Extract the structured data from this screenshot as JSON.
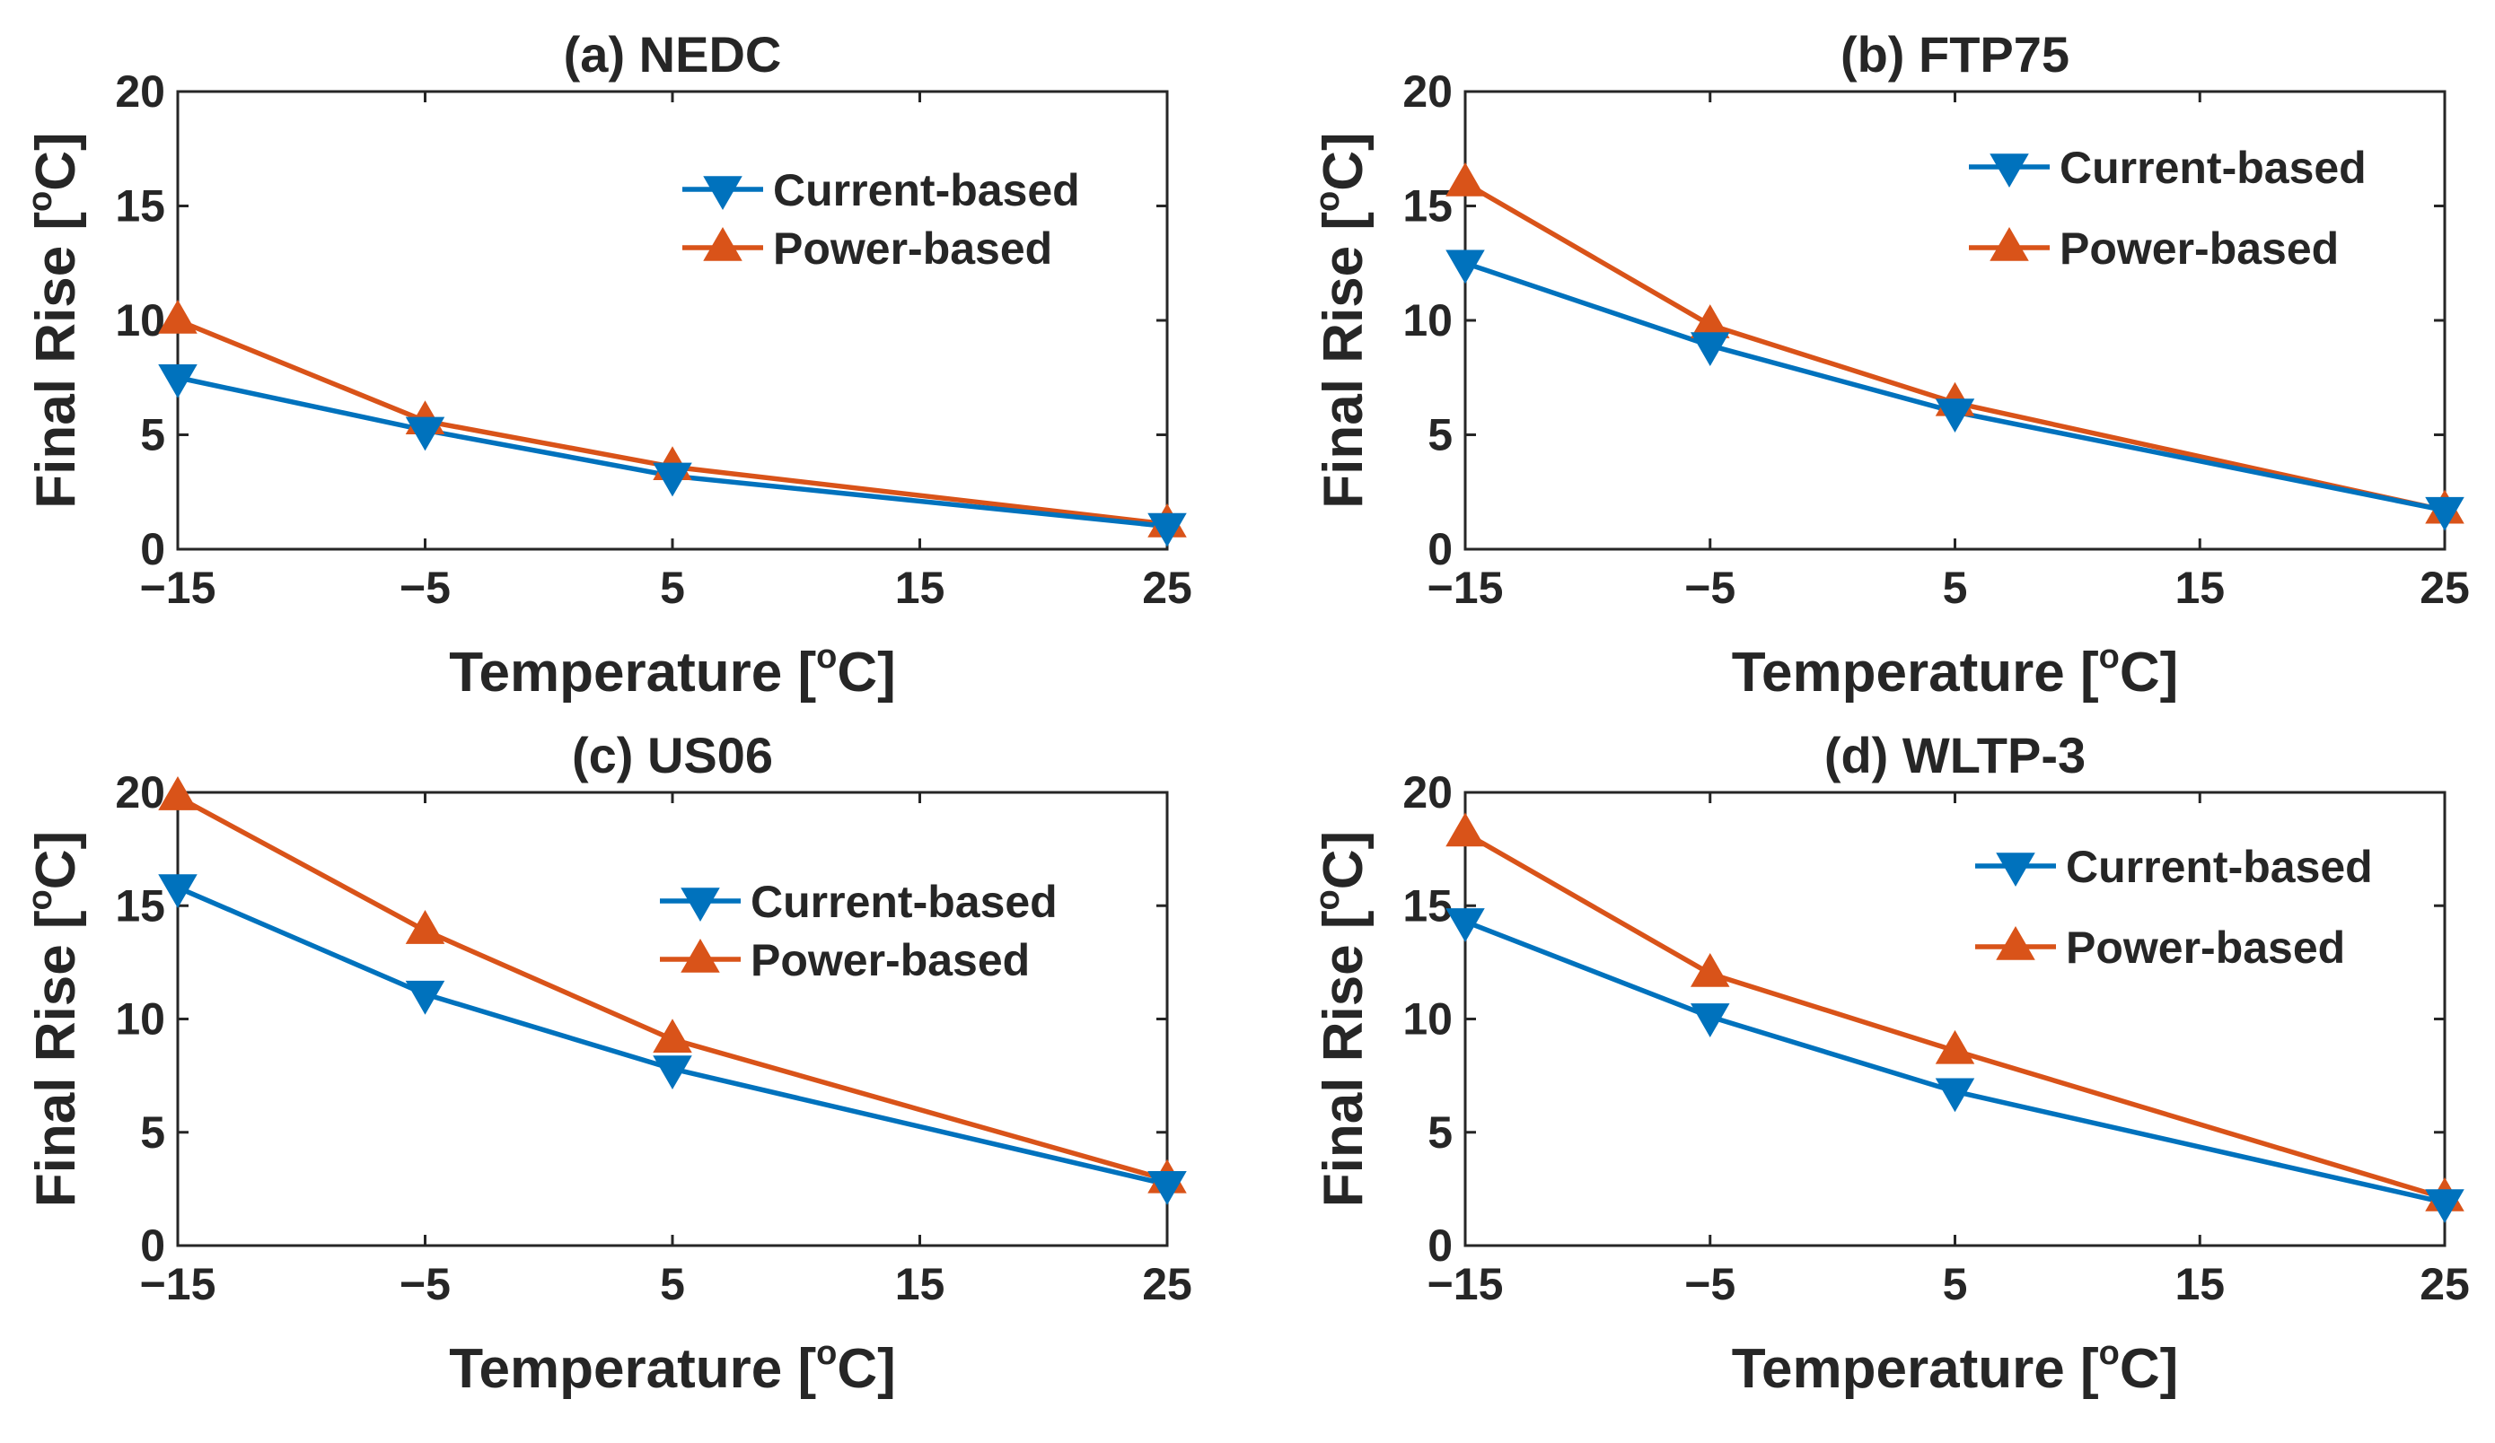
{
  "chart_data": [
    {
      "type": "line",
      "title": "(a) NEDC",
      "xlabel": "Temperature",
      "ylabel": "Final Rise",
      "unit_sup": "o",
      "unit_letter": "C",
      "x": [
        -15,
        -5,
        5,
        25
      ],
      "xticks": [
        "−15",
        "−5",
        "5",
        "15",
        "25"
      ],
      "yticks": [
        "0",
        "5",
        "10",
        "15",
        "20"
      ],
      "xlim": [
        -15,
        25
      ],
      "ylim": [
        0,
        20
      ],
      "legend_placement": "top-right",
      "series": [
        {
          "name": "Current-based",
          "values": [
            7.5,
            5.2,
            3.2,
            1.0
          ],
          "color": "#0072BD",
          "marker": "triangle-down"
        },
        {
          "name": "Power-based",
          "values": [
            10.0,
            5.6,
            3.6,
            1.1
          ],
          "color": "#D95319",
          "marker": "triangle-up"
        }
      ]
    },
    {
      "type": "line",
      "title": "(b) FTP75",
      "xlabel": "Temperature",
      "ylabel": "Final Rise",
      "unit_sup": "o",
      "unit_letter": "C",
      "x": [
        -15,
        -5,
        5,
        25
      ],
      "xticks": [
        "−15",
        "−5",
        "5",
        "15",
        "25"
      ],
      "yticks": [
        "0",
        "5",
        "10",
        "15",
        "20"
      ],
      "xlim": [
        -15,
        25
      ],
      "ylim": [
        0,
        20
      ],
      "legend_placement": "top-right",
      "series": [
        {
          "name": "Current-based",
          "values": [
            12.5,
            8.9,
            6.0,
            1.7
          ],
          "color": "#0072BD",
          "marker": "triangle-down"
        },
        {
          "name": "Power-based",
          "values": [
            16.0,
            9.8,
            6.4,
            1.7
          ],
          "color": "#D95319",
          "marker": "triangle-up"
        }
      ]
    },
    {
      "type": "line",
      "title": "(c) US06",
      "xlabel": "Temperature",
      "ylabel": "Final Rise",
      "unit_sup": "o",
      "unit_letter": "C",
      "x": [
        -15,
        -5,
        5,
        25
      ],
      "xticks": [
        "−15",
        "−5",
        "5",
        "15",
        "25"
      ],
      "yticks": [
        "0",
        "5",
        "10",
        "15",
        "20"
      ],
      "xlim": [
        -15,
        25
      ],
      "ylim": [
        0,
        20
      ],
      "legend_placement": "right",
      "series": [
        {
          "name": "Current-based",
          "values": [
            15.8,
            11.1,
            7.8,
            2.7
          ],
          "color": "#0072BD",
          "marker": "triangle-down"
        },
        {
          "name": "Power-based",
          "values": [
            19.8,
            13.9,
            9.1,
            2.9
          ],
          "color": "#D95319",
          "marker": "triangle-up"
        }
      ]
    },
    {
      "type": "line",
      "title": "(d) WLTP-3",
      "xlabel": "Temperature",
      "ylabel": "Final Rise",
      "unit_sup": "o",
      "unit_letter": "C",
      "x": [
        -15,
        -5,
        5,
        25
      ],
      "xticks": [
        "−15",
        "−5",
        "5",
        "15",
        "25"
      ],
      "yticks": [
        "0",
        "5",
        "10",
        "15",
        "20"
      ],
      "xlim": [
        -15,
        25
      ],
      "ylim": [
        0,
        20
      ],
      "legend_placement": "top-right",
      "series": [
        {
          "name": "Current-based",
          "values": [
            14.3,
            10.1,
            6.8,
            1.9
          ],
          "color": "#0072BD",
          "marker": "triangle-down"
        },
        {
          "name": "Power-based",
          "values": [
            18.2,
            12.0,
            8.6,
            2.1
          ],
          "color": "#D95319",
          "marker": "triangle-up"
        }
      ]
    }
  ]
}
